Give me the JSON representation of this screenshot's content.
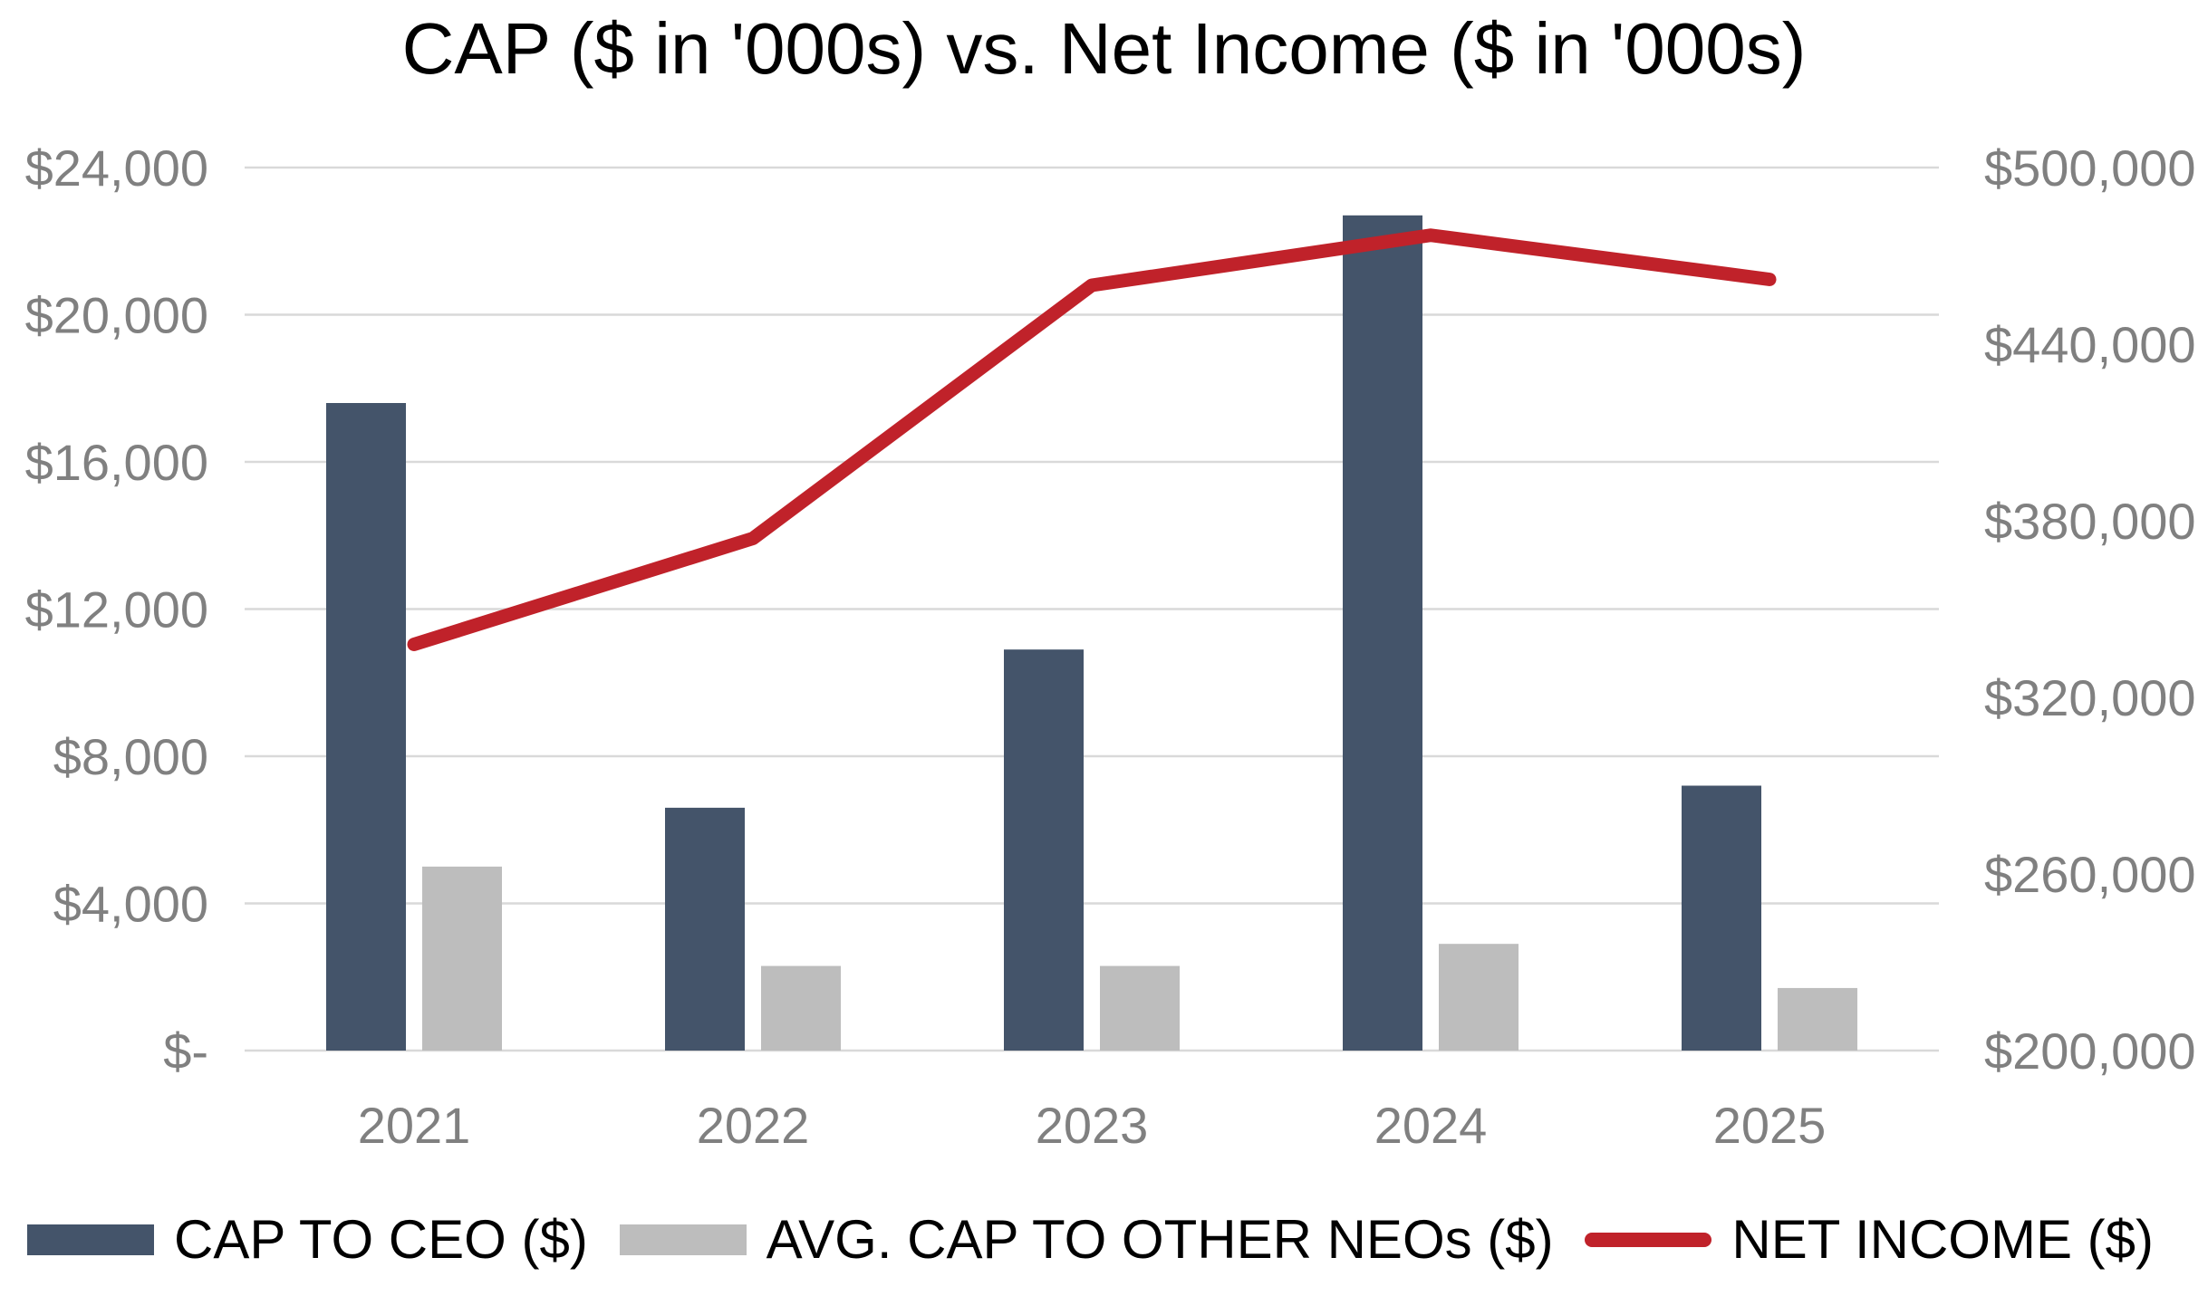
{
  "title": "CAP ($ in '000s) vs. Net Income ($ in '000s)",
  "colors": {
    "cap_ceo": "#44546A",
    "cap_neo": "#BDBDBD",
    "net_income": "#C0222A",
    "gridline": "#D9D9D9",
    "axis_text": "#808080",
    "title_text": "#000000"
  },
  "chart_data": {
    "type": "bar",
    "subtype": "grouped bars with overlay line (dual axis combo)",
    "title": "CAP ($ in '000s) vs. Net Income ($ in '000s)",
    "categories": [
      "2021",
      "2022",
      "2023",
      "2024",
      "2025"
    ],
    "series": [
      {
        "name": "CAP TO CEO ($)",
        "type": "bar",
        "axis": "left",
        "color": "#44546A",
        "values": [
          17600,
          6600,
          10900,
          22700,
          7200
        ]
      },
      {
        "name": "AVG. CAP TO OTHER NEOs ($)",
        "type": "bar",
        "axis": "left",
        "color": "#BDBDBD",
        "values": [
          5000,
          2300,
          2300,
          2900,
          1700
        ]
      },
      {
        "name": "NET INCOME ($)",
        "type": "line",
        "axis": "right",
        "color": "#C0222A",
        "values": [
          338000,
          374000,
          460000,
          477000,
          462000
        ]
      }
    ],
    "left_axis": {
      "min": 0,
      "max": 24000,
      "step": 4000,
      "tick_labels": [
        "$-",
        "$4,000",
        "$8,000",
        "$12,000",
        "$16,000",
        "$20,000",
        "$24,000"
      ]
    },
    "right_axis": {
      "min": 200000,
      "max": 500000,
      "step": 60000,
      "tick_labels": [
        "$200,000",
        "$260,000",
        "$320,000",
        "$380,000",
        "$440,000",
        "$500,000"
      ]
    },
    "grid": true,
    "legend_position": "bottom"
  }
}
